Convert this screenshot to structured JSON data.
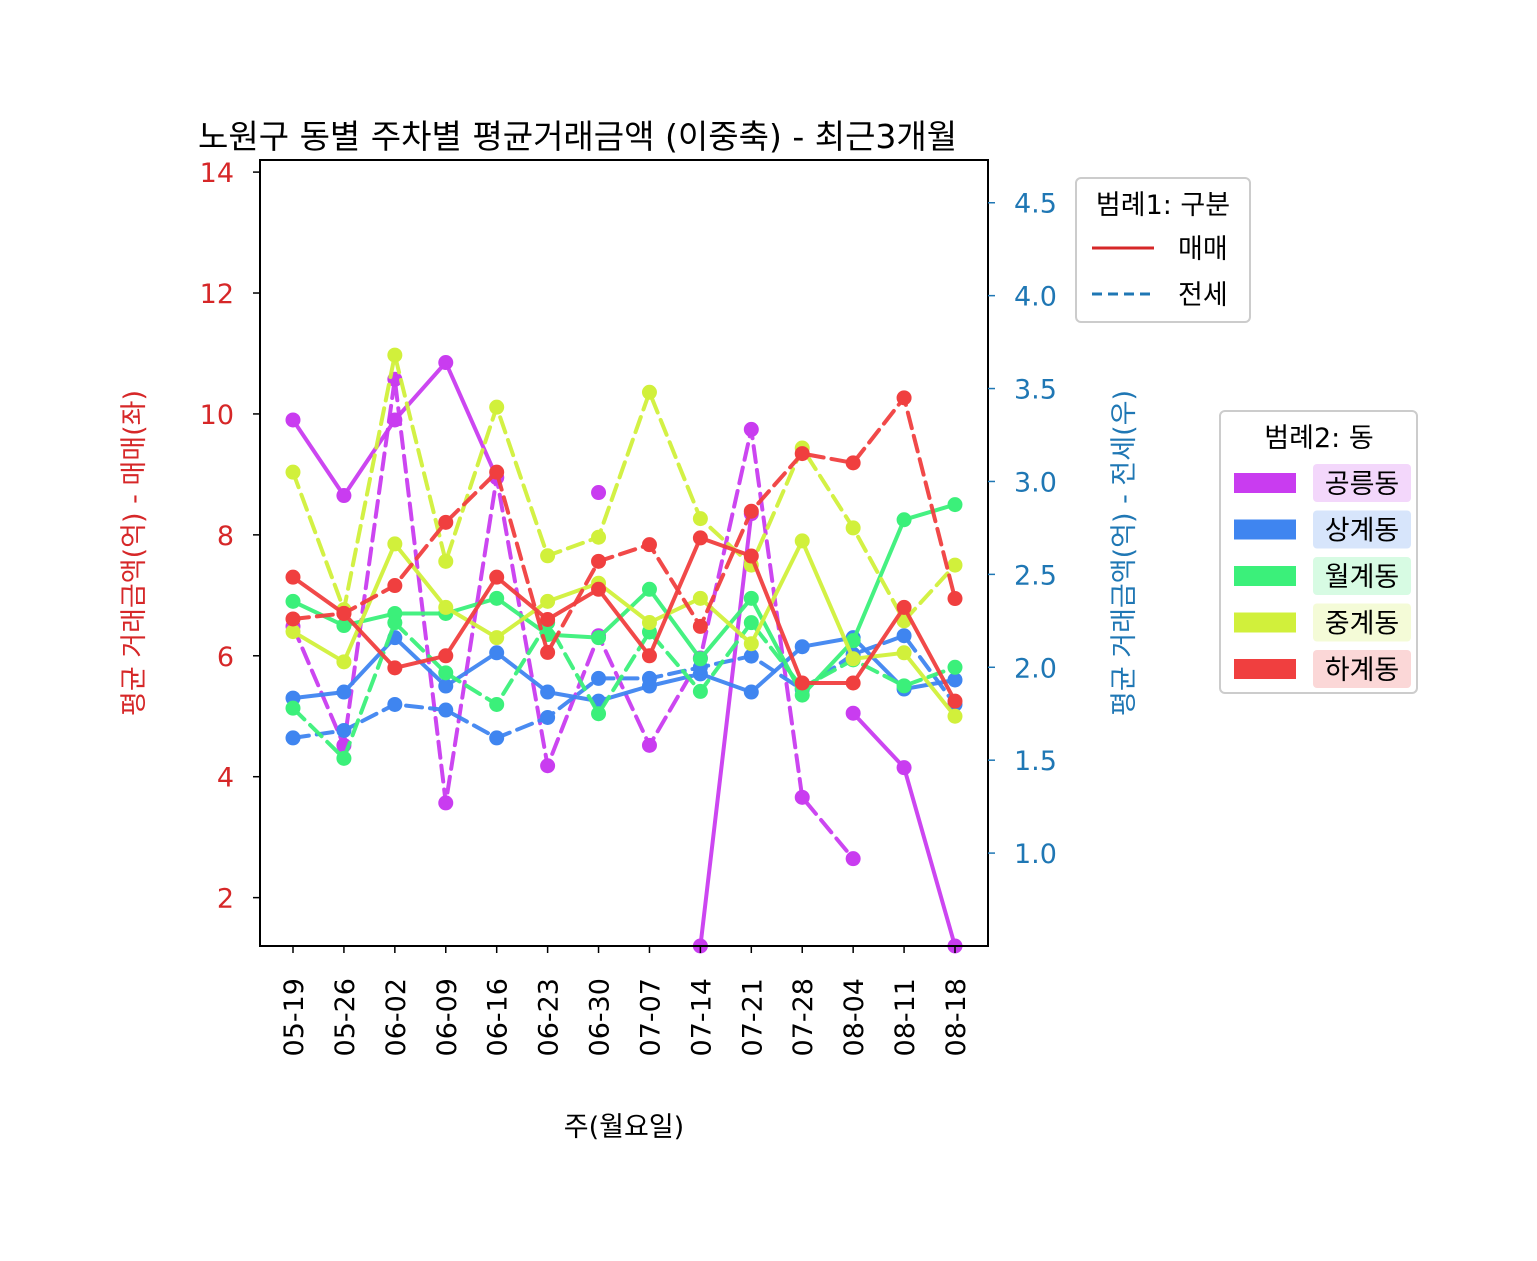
{
  "chart_data": {
    "type": "line",
    "title": "노원구 동별 주차별 평균거래금액 (이중축) - 최근3개월",
    "xlabel": "주(월요일)",
    "ylabel_left": "평균 거래금액(억) - 매매(좌)",
    "ylabel_right": "평균 거래금액(억) - 전세(우)",
    "categories": [
      "05-19",
      "05-26",
      "06-02",
      "06-09",
      "06-16",
      "06-23",
      "06-30",
      "07-07",
      "07-14",
      "07-21",
      "07-28",
      "08-04",
      "08-11",
      "08-18"
    ],
    "left_axis": {
      "ylim": [
        1.2,
        14.2
      ],
      "ticks": [
        2,
        4,
        6,
        8,
        10,
        12,
        14
      ],
      "color": "#d62728"
    },
    "right_axis": {
      "ylim": [
        0.5,
        4.73
      ],
      "ticks": [
        1.0,
        1.5,
        2.0,
        2.5,
        3.0,
        3.5,
        4.0,
        4.5
      ],
      "color": "#1f77b4"
    },
    "legend1": {
      "title": "범례1: 구분",
      "entries": [
        {
          "label": "매매",
          "style": "solid",
          "color": "#d62728"
        },
        {
          "label": "전세",
          "style": "dashed",
          "color": "#1f77b4"
        }
      ]
    },
    "legend2": {
      "title": "범례2: 동",
      "entries": [
        {
          "label": "공릉동",
          "color": "#c93cf0",
          "bg": "#f3d7fb"
        },
        {
          "label": "상계동",
          "color": "#3f85f0",
          "bg": "#d7e5fb"
        },
        {
          "label": "월계동",
          "color": "#3bf07a",
          "bg": "#d7fbe3"
        },
        {
          "label": "중계동",
          "color": "#d1f03b",
          "bg": "#f4fbd7"
        },
        {
          "label": "하계동",
          "color": "#f03f3f",
          "bg": "#fbd7d7"
        }
      ]
    },
    "series": [
      {
        "name": "공릉동",
        "kind": "매매",
        "axis": "left",
        "color": "#c93cf0",
        "values": [
          9.9,
          8.65,
          9.9,
          10.85,
          8.95,
          null,
          8.7,
          null,
          1.2,
          8.35,
          null,
          5.05,
          4.15,
          1.2
        ]
      },
      {
        "name": "공릉동",
        "kind": "전세",
        "axis": "right",
        "color": "#c93cf0",
        "values": [
          2.22,
          1.58,
          3.55,
          1.27,
          3.02,
          1.47,
          2.17,
          1.58,
          2.05,
          3.28,
          1.3,
          0.97,
          null,
          null
        ]
      },
      {
        "name": "상계동",
        "kind": "매매",
        "axis": "left",
        "color": "#3f85f0",
        "values": [
          5.3,
          5.4,
          6.3,
          5.5,
          6.05,
          5.4,
          5.25,
          5.5,
          5.7,
          5.4,
          6.15,
          6.3,
          5.45,
          5.6
        ]
      },
      {
        "name": "상계동",
        "kind": "전세",
        "axis": "right",
        "color": "#3f85f0",
        "values": [
          1.62,
          1.66,
          1.8,
          1.77,
          1.62,
          1.73,
          1.94,
          1.94,
          2.0,
          2.06,
          1.88,
          2.07,
          2.17,
          1.8
        ]
      },
      {
        "name": "월계동",
        "kind": "매매",
        "axis": "left",
        "color": "#3bf07a",
        "values": [
          6.9,
          6.5,
          6.7,
          6.7,
          6.95,
          6.35,
          6.3,
          7.1,
          5.95,
          6.95,
          5.35,
          6.25,
          8.25,
          8.5
        ]
      },
      {
        "name": "월계동",
        "kind": "전세",
        "axis": "right",
        "color": "#3bf07a",
        "values": [
          1.78,
          1.51,
          2.24,
          1.97,
          1.8,
          2.24,
          1.75,
          2.19,
          1.87,
          2.24,
          1.89,
          2.04,
          1.9,
          2.0
        ]
      },
      {
        "name": "중계동",
        "kind": "매매",
        "axis": "left",
        "color": "#d1f03b",
        "values": [
          6.4,
          5.9,
          7.85,
          6.8,
          6.3,
          6.9,
          7.2,
          6.55,
          6.95,
          6.2,
          7.9,
          5.95,
          6.05,
          5.0
        ]
      },
      {
        "name": "중계동",
        "kind": "전세",
        "axis": "right",
        "color": "#d1f03b",
        "values": [
          3.05,
          2.31,
          3.68,
          2.57,
          3.4,
          2.6,
          2.7,
          3.48,
          2.8,
          2.55,
          3.18,
          2.75,
          2.25,
          2.55
        ]
      },
      {
        "name": "하계동",
        "kind": "매매",
        "axis": "left",
        "color": "#f03f3f",
        "values": [
          7.3,
          6.7,
          5.8,
          6.0,
          7.3,
          6.6,
          7.1,
          6.0,
          7.95,
          7.65,
          5.55,
          5.55,
          6.8,
          5.25
        ]
      },
      {
        "name": "하계동",
        "kind": "전세",
        "axis": "right",
        "color": "#f03f3f",
        "values": [
          2.26,
          2.29,
          2.44,
          2.78,
          3.05,
          2.08,
          2.57,
          2.66,
          2.22,
          2.84,
          3.15,
          3.1,
          3.45,
          2.37
        ]
      }
    ]
  }
}
